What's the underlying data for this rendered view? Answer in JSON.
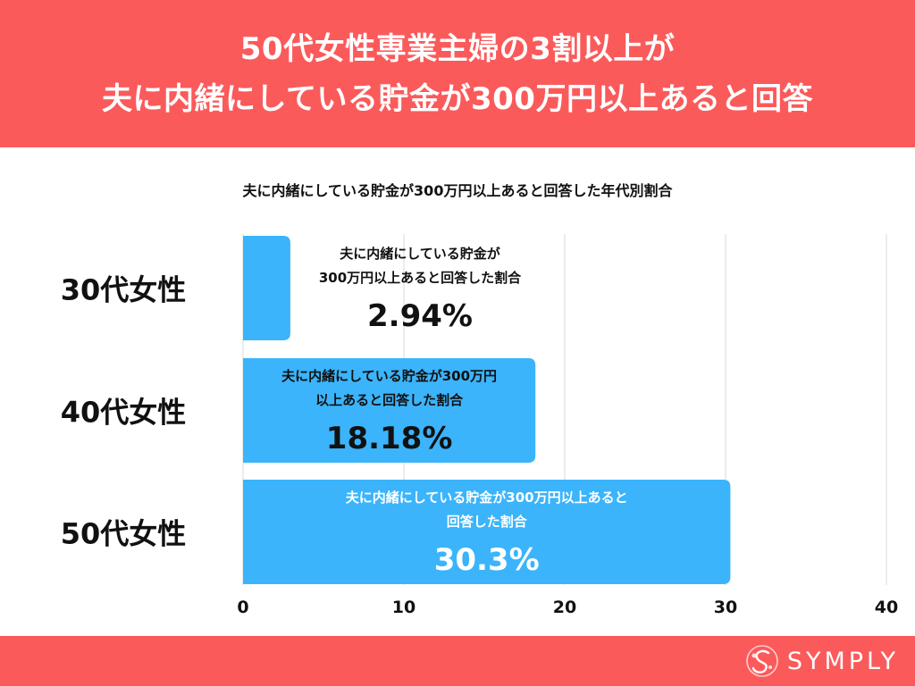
{
  "header": {
    "line1": "50代女性専業主婦の3割以上が",
    "line2": "夫に内緒にしている貯金が300万円以上あると回答"
  },
  "chart_data": {
    "type": "bar",
    "orientation": "horizontal",
    "title": "夫に内緒にしている貯金が300万円以上あると回答した年代別割合",
    "categories": [
      "30代女性",
      "40代女性",
      "50代女性"
    ],
    "values": [
      2.94,
      18.18,
      30.3
    ],
    "value_labels": [
      "2.94%",
      "18.18%",
      "30.3%"
    ],
    "bar_labels": [
      [
        "夫に内緒にしている貯金が",
        "300万円以上あると回答した割合"
      ],
      [
        "夫に内緒にしている貯金が300万円",
        "以上あると回答した割合"
      ],
      [
        "夫に内緒にしている貯金が300万円以上あると",
        "回答した割合"
      ]
    ],
    "xlim": [
      0,
      40
    ],
    "xticks": [
      0,
      10,
      20,
      30,
      40
    ],
    "grid": true,
    "bar_color": "#3bb4fb"
  },
  "brand": {
    "name": "SYMPLY",
    "accent": "#fb5a5b"
  }
}
